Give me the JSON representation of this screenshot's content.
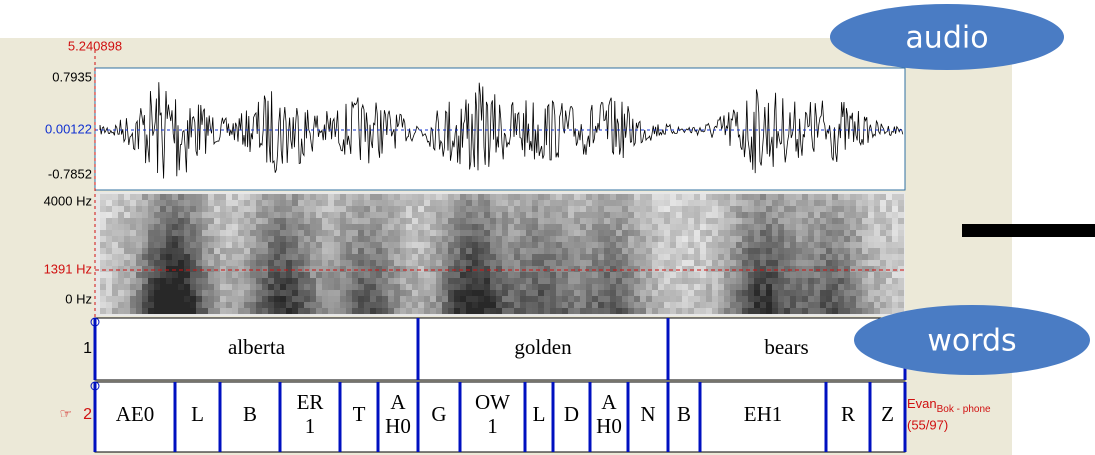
{
  "time_label": "5.240898",
  "waveform": {
    "max": "0.7935",
    "cursor": "0.00122",
    "min": "-0.7852"
  },
  "spectrogram": {
    "top": "4000 Hz",
    "cursor": "1391 Hz",
    "bottom": "0 Hz"
  },
  "tiers": [
    {
      "number": "1",
      "intervals": [
        "alberta",
        "golden",
        "bears"
      ]
    },
    {
      "marker": "☞",
      "number": "2",
      "intervals": [
        "AE0",
        "L",
        "B",
        [
          "ER",
          "1"
        ],
        "T",
        [
          "A",
          "H0"
        ],
        "G",
        [
          "OW",
          "1"
        ],
        "L",
        "D",
        [
          "A",
          "H0"
        ],
        "N",
        "B",
        "EH1",
        "R",
        "Z"
      ]
    }
  ],
  "tier_name": {
    "main": "Evan",
    "sub": "Bok - phone"
  },
  "tier_count": "(55/97)",
  "overlays": {
    "audio": "audio",
    "words": "words"
  }
}
